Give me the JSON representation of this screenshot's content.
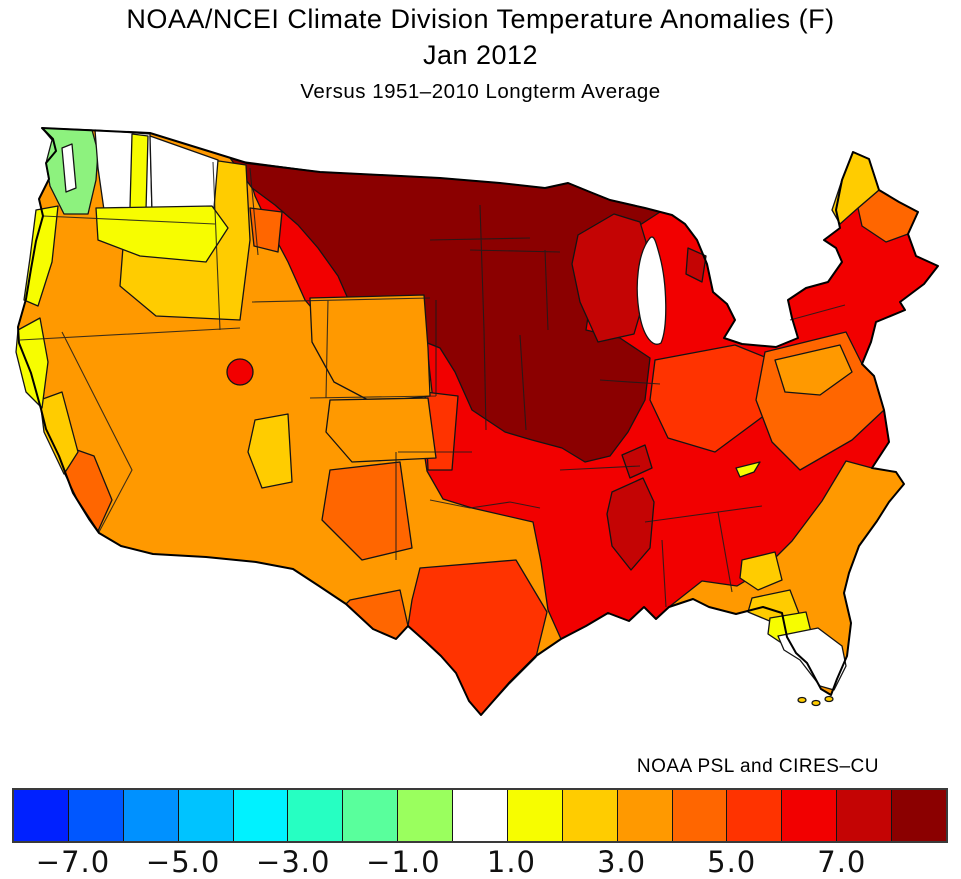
{
  "header": {
    "title": "NOAA/NCEI Climate Division Temperature Anomalies (F)",
    "date_line": "Jan 2012",
    "baseline_line": "Versus 1951–2010 Longterm Average"
  },
  "map": {
    "name": "Contiguous United States climate division choropleth",
    "source_label": "NOAA PSL and CIRES–CU"
  },
  "palette": {
    "orange": "#ff9900",
    "red": "#f20000",
    "maroon": "#8b0000",
    "firebrick": "#c40404",
    "orange_red": "#ff3300",
    "dark_orange": "#ff6600",
    "gold": "#ffcc00",
    "yellow": "#f7fd00",
    "green": "#8df27e",
    "white": "#ffffff",
    "outline": "#000000"
  },
  "colorbar": {
    "units": "degrees F anomaly",
    "cells": [
      {
        "color": "#0021ff",
        "range": [
          -8,
          -7
        ]
      },
      {
        "color": "#0057ff",
        "range": [
          -7,
          -6
        ]
      },
      {
        "color": "#0091ff",
        "range": [
          -6,
          -5
        ]
      },
      {
        "color": "#00c3ff",
        "range": [
          -5,
          -4
        ]
      },
      {
        "color": "#00f2ff",
        "range": [
          -4,
          -3
        ]
      },
      {
        "color": "#26ffc2",
        "range": [
          -3,
          -2
        ]
      },
      {
        "color": "#59ff9c",
        "range": [
          -2,
          -1
        ]
      },
      {
        "color": "#9aff5e",
        "range": [
          -1,
          0
        ]
      },
      {
        "color": "#ffffff",
        "range": [
          0,
          1
        ]
      },
      {
        "color": "#f7fd00",
        "range": [
          1,
          2
        ]
      },
      {
        "color": "#ffcc00",
        "range": [
          2,
          3
        ]
      },
      {
        "color": "#ff9900",
        "range": [
          3,
          4
        ]
      },
      {
        "color": "#ff6600",
        "range": [
          4,
          5
        ]
      },
      {
        "color": "#ff3300",
        "range": [
          5,
          6
        ]
      },
      {
        "color": "#f20000",
        "range": [
          6,
          7
        ]
      },
      {
        "color": "#c40404",
        "range": [
          7,
          8
        ]
      },
      {
        "color": "#8b0000",
        "range": [
          8,
          9
        ]
      }
    ],
    "tick_labels": [
      {
        "label": "−7.0",
        "boundary_index": 1
      },
      {
        "label": "−5.0",
        "boundary_index": 3
      },
      {
        "label": "−3.0",
        "boundary_index": 5
      },
      {
        "label": "−1.0",
        "boundary_index": 7
      },
      {
        "label": "1.0",
        "boundary_index": 9
      },
      {
        "label": "3.0",
        "boundary_index": 11
      },
      {
        "label": "5.0",
        "boundary_index": 13
      },
      {
        "label": "7.0",
        "boundary_index": 15
      }
    ]
  },
  "chart_data": {
    "type": "heatmap",
    "subtype": "choropleth-map",
    "title": "NOAA/NCEI Climate Division Temperature Anomalies (F)",
    "period": "Jan 2012",
    "baseline": "Versus 1951–2010 Longterm Average",
    "attribution": "NOAA PSL and CIRES–CU",
    "variable": "Monthly mean temperature anomaly (F) by U.S. climate division",
    "colorbar": {
      "tick_labels": [
        "−7.0",
        "−5.0",
        "−3.0",
        "−1.0",
        "1.0",
        "3.0",
        "5.0",
        "7.0"
      ],
      "bin_width_f": 1,
      "range_f": [
        -8,
        9
      ],
      "colors": [
        "#0021ff",
        "#0057ff",
        "#0091ff",
        "#00c3ff",
        "#00f2ff",
        "#26ffc2",
        "#59ff9c",
        "#9aff5e",
        "#ffffff",
        "#f7fd00",
        "#ffcc00",
        "#ff9900",
        "#ff6600",
        "#ff3300",
        "#f20000",
        "#c40404",
        "#8b0000"
      ],
      "legend_position": "bottom"
    },
    "regions": [
      {
        "area": "Western Washington (coast and Puget Sound)",
        "anomaly_f": "-2 to -1"
      },
      {
        "area": "Central and northeast Washington",
        "anomaly_f": "0 to 1 (near normal)"
      },
      {
        "area": "Eastern Washington, Oregon coast, northern California coast",
        "anomaly_f": "+1 to +2"
      },
      {
        "area": "Oregon interior, Idaho panhandle, central California coast",
        "anomaly_f": "+2 to +3"
      },
      {
        "area": "Great Basin, Southwest (NV/UT/AZ), Rockies, West Texas, Southeast coastal plain",
        "anomaly_f": "+3 to +4"
      },
      {
        "area": "Southern California coast, New Mexico, Mid-Atlantic (PA/MD/VA), coastal Maine",
        "anomaly_f": "+4 to +5"
      },
      {
        "area": "Ohio Valley, central Texas, western Kansas",
        "anomaly_f": "+5 to +6"
      },
      {
        "area": "Great Lakes, Midwest, Oklahoma, Louisiana, Tennessee Valley, Northeast, east Texas",
        "anomaly_f": "+6 to +7"
      },
      {
        "area": "Wisconsin and lower Mississippi Valley (AR/MS)",
        "anomaly_f": "+7 to +8"
      },
      {
        "area": "Northeast Montana, North Dakota, South Dakota, Minnesota, central Nebraska, Iowa",
        "anomaly_f": "+8 to +9 (warmest)"
      },
      {
        "area": "Northern Utah spot",
        "anomaly_f": "+6 to +7"
      },
      {
        "area": "Central Florida",
        "anomaly_f": "+1 to +2"
      },
      {
        "area": "North Florida and southeast Georgia",
        "anomaly_f": "+2 to +3"
      },
      {
        "area": "Florida peninsula south of Tampa",
        "anomaly_f": "0 to 1 (near normal)"
      },
      {
        "area": "Northern Maine",
        "anomaly_f": "+2 to +3"
      }
    ]
  }
}
